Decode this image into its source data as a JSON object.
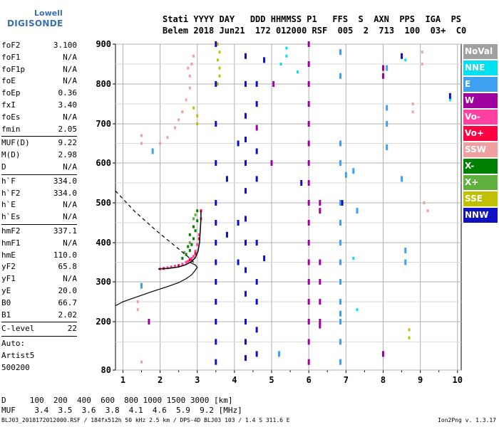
{
  "logo": {
    "top": "Lowell",
    "bottom": "DIGISONDE"
  },
  "header": {
    "line1": "Stati YYYY DAY   DDD HHMMSS P1   FFS  S  AXN  PPS  IGA  PS",
    "line2": "Belem 2018 Jun21  172 012000 RSF  005  2  713  100  03+  C0"
  },
  "params_group1": [
    {
      "label": "foF2",
      "value": "3.100"
    },
    {
      "label": "foF1",
      "value": "N/A"
    },
    {
      "label": "foF1p",
      "value": "N/A"
    },
    {
      "label": "foE",
      "value": "N/A"
    },
    {
      "label": "foEp",
      "value": "0.36"
    },
    {
      "label": "fxI",
      "value": "3.40"
    },
    {
      "label": "foEs",
      "value": "N/A"
    },
    {
      "label": "fmin",
      "value": "2.05"
    }
  ],
  "params_group2": [
    {
      "label": "MUF(D)",
      "value": "9.22"
    },
    {
      "label": "M(D)",
      "value": "2.98"
    },
    {
      "label": "D",
      "value": "N/A"
    }
  ],
  "params_group3": [
    {
      "label": "h`F",
      "value": "334.0"
    },
    {
      "label": "h`F2",
      "value": "334.0"
    },
    {
      "label": "h`E",
      "value": "N/A"
    },
    {
      "label": "h`Es",
      "value": "N/A"
    }
  ],
  "params_group4": [
    {
      "label": "hmF2",
      "value": "337.1"
    },
    {
      "label": "hmF1",
      "value": "N/A"
    },
    {
      "label": "hmE",
      "value": "110.0"
    },
    {
      "label": "yF2",
      "value": "65.8"
    },
    {
      "label": "yF1",
      "value": "N/A"
    },
    {
      "label": "yE",
      "value": "20.0"
    },
    {
      "label": "B0",
      "value": "66.7"
    },
    {
      "label": "B1",
      "value": "2.02"
    }
  ],
  "params_group5": [
    {
      "label": "C-level",
      "value": "22"
    }
  ],
  "auto": {
    "line1": "Auto:",
    "line2": "Artist5",
    "line3": "500200"
  },
  "legend": [
    {
      "label": "NoVal",
      "color": "#a0a0a0"
    },
    {
      "label": "NNE",
      "color": "#00e0f0"
    },
    {
      "label": "E",
      "color": "#40a0f0"
    },
    {
      "label": "W",
      "color": "#a000a0"
    },
    {
      "label": "Vo-",
      "color": "#ff40a0"
    },
    {
      "label": "Vo+",
      "color": "#ff0040"
    },
    {
      "label": "SSW",
      "color": "#f0a0a0"
    },
    {
      "label": "X-",
      "color": "#008000"
    },
    {
      "label": "X+",
      "color": "#60b040"
    },
    {
      "label": "SSE",
      "color": "#c0c000"
    },
    {
      "label": "NNW",
      "color": "#1010c0"
    }
  ],
  "bottom": {
    "d_line": "D     100  200  400  600  800 1000 1500 3000 [km]",
    "muf_line": "MUF    3.4  3.5  3.6  3.8  4.1  4.6  5.9  9.2 [MHz]"
  },
  "footer": {
    "left": "BLJ03_2018172012000.RSF / 184fx512h 50 kHz 2.5 km / DPS-4D BLJ03 103 / 1.4 S 311.6 E",
    "right": "Ion2Png v. 1.3.17"
  },
  "chart_data": {
    "type": "scatter",
    "title": "",
    "xlabel": "",
    "ylabel": "",
    "xlim": [
      0.8,
      10.1
    ],
    "ylim": [
      80,
      900
    ],
    "x_ticks": [
      1,
      2,
      3,
      4,
      5,
      6,
      7,
      8,
      9,
      10
    ],
    "y_ticks": [
      80,
      200,
      300,
      400,
      500,
      600,
      700,
      800,
      900
    ],
    "grid": true,
    "series": [
      {
        "name": "Vo-",
        "color": "#ff40a0",
        "points": [
          [
            2.0,
            333
          ],
          [
            2.2,
            336
          ],
          [
            2.4,
            340
          ],
          [
            2.6,
            345
          ],
          [
            2.7,
            350
          ],
          [
            2.8,
            357
          ],
          [
            2.9,
            365
          ],
          [
            2.95,
            378
          ],
          [
            3.0,
            395
          ],
          [
            3.05,
            420
          ],
          [
            3.1,
            460
          ],
          [
            2.3,
            338
          ],
          [
            2.5,
            342
          ],
          [
            2.75,
            352
          ],
          [
            2.85,
            360
          ]
        ]
      },
      {
        "name": "Vo+",
        "color": "#ff0040",
        "points": [
          [
            2.1,
            334
          ],
          [
            2.5,
            341
          ],
          [
            2.8,
            356
          ],
          [
            2.95,
            372
          ],
          [
            3.05,
            410
          ],
          [
            3.1,
            480
          ]
        ]
      },
      {
        "name": "X-",
        "color": "#008000",
        "points": [
          [
            2.6,
            360
          ],
          [
            2.7,
            370
          ],
          [
            2.8,
            380
          ],
          [
            2.85,
            395
          ],
          [
            2.9,
            410
          ],
          [
            2.95,
            430
          ],
          [
            3.0,
            455
          ],
          [
            3.0,
            480
          ],
          [
            2.75,
            390
          ],
          [
            2.8,
            420
          ],
          [
            2.9,
            440
          ]
        ]
      },
      {
        "name": "X+",
        "color": "#60b040",
        "points": [
          [
            2.65,
            375
          ],
          [
            2.8,
            400
          ],
          [
            2.9,
            460
          ],
          [
            2.95,
            470
          ]
        ]
      },
      {
        "name": "SSW",
        "color": "#f0a0a0",
        "points": [
          [
            2.0,
            650
          ],
          [
            2.2,
            665
          ],
          [
            2.4,
            690
          ],
          [
            2.5,
            710
          ],
          [
            2.6,
            730
          ],
          [
            2.7,
            760
          ],
          [
            2.8,
            790
          ],
          [
            2.8,
            820
          ],
          [
            2.85,
            850
          ],
          [
            2.9,
            870
          ],
          [
            1.5,
            650
          ],
          [
            1.5,
            670
          ],
          [
            2.75,
            840
          ],
          [
            9.05,
            850
          ],
          [
            9.05,
            880
          ],
          [
            8.8,
            750
          ],
          [
            8.8,
            730
          ],
          [
            9.1,
            500
          ],
          [
            9.2,
            480
          ],
          [
            1.4,
            250
          ],
          [
            1.4,
            230
          ],
          [
            1.5,
            100
          ]
        ]
      },
      {
        "name": "SSE",
        "color": "#c0c000",
        "points": [
          [
            3.55,
            900
          ],
          [
            3.6,
            880
          ],
          [
            3.55,
            860
          ],
          [
            3.6,
            840
          ],
          [
            3.6,
            820
          ],
          [
            3.55,
            800
          ],
          [
            3.0,
            720
          ],
          [
            3.0,
            700
          ],
          [
            2.9,
            740
          ],
          [
            8.7,
            180
          ],
          [
            8.7,
            160
          ]
        ]
      },
      {
        "name": "W",
        "color": "#a000a0",
        "points": [
          [
            6.0,
            900
          ],
          [
            6.0,
            850
          ],
          [
            6.0,
            800
          ],
          [
            6.0,
            750
          ],
          [
            6.0,
            700
          ],
          [
            6.0,
            650
          ],
          [
            6.0,
            600
          ],
          [
            6.0,
            550
          ],
          [
            6.0,
            500
          ],
          [
            6.0,
            450
          ],
          [
            6.0,
            400
          ],
          [
            6.0,
            350
          ],
          [
            6.0,
            300
          ],
          [
            6.0,
            250
          ],
          [
            6.0,
            200
          ],
          [
            6.0,
            150
          ],
          [
            6.0,
            100
          ],
          [
            6.3,
            500
          ],
          [
            6.3,
            480
          ],
          [
            6.3,
            350
          ],
          [
            6.3,
            300
          ],
          [
            6.3,
            250
          ],
          [
            6.3,
            200
          ],
          [
            6.3,
            190
          ],
          [
            5.05,
            800
          ],
          [
            5.0,
            600
          ],
          [
            4.6,
            690
          ],
          [
            8.0,
            840
          ],
          [
            8.0,
            820
          ],
          [
            8.0,
            120
          ],
          [
            1.7,
            200
          ]
        ]
      },
      {
        "name": "E",
        "color": "#40a0f0",
        "points": [
          [
            6.85,
            880
          ],
          [
            6.85,
            820
          ],
          [
            6.85,
            650
          ],
          [
            6.85,
            600
          ],
          [
            6.85,
            500
          ],
          [
            6.85,
            450
          ],
          [
            6.85,
            400
          ],
          [
            6.85,
            350
          ],
          [
            6.85,
            300
          ],
          [
            6.85,
            250
          ],
          [
            6.85,
            220
          ],
          [
            6.85,
            200
          ],
          [
            6.85,
            150
          ],
          [
            6.85,
            100
          ],
          [
            8.1,
            840
          ],
          [
            8.1,
            740
          ],
          [
            8.1,
            700
          ],
          [
            8.1,
            640
          ],
          [
            8.5,
            560
          ],
          [
            8.6,
            380
          ],
          [
            8.6,
            350
          ],
          [
            5.2,
            120
          ],
          [
            7.0,
            570
          ],
          [
            7.2,
            580
          ],
          [
            7.3,
            480
          ],
          [
            1.8,
            630
          ],
          [
            1.5,
            290
          ]
        ]
      },
      {
        "name": "NNE",
        "color": "#00e0f0",
        "points": [
          [
            5.25,
            850
          ],
          [
            5.4,
            870
          ],
          [
            5.7,
            830
          ],
          [
            5.4,
            890
          ],
          [
            9.8,
            760
          ],
          [
            7.2,
            360
          ],
          [
            7.3,
            230
          ],
          [
            8.6,
            860
          ]
        ]
      },
      {
        "name": "NNW",
        "color": "#1010c0",
        "points": [
          [
            3.5,
            900
          ],
          [
            3.5,
            800
          ],
          [
            3.5,
            700
          ],
          [
            3.5,
            600
          ],
          [
            3.5,
            500
          ],
          [
            3.5,
            450
          ],
          [
            3.5,
            400
          ],
          [
            3.5,
            350
          ],
          [
            3.5,
            300
          ],
          [
            3.5,
            250
          ],
          [
            3.5,
            200
          ],
          [
            3.5,
            150
          ],
          [
            3.5,
            100
          ],
          [
            4.3,
            870
          ],
          [
            4.3,
            800
          ],
          [
            4.3,
            720
          ],
          [
            4.3,
            660
          ],
          [
            4.3,
            600
          ],
          [
            4.3,
            530
          ],
          [
            4.3,
            460
          ],
          [
            4.3,
            400
          ],
          [
            4.3,
            330
          ],
          [
            4.3,
            270
          ],
          [
            4.3,
            200
          ],
          [
            4.3,
            150
          ],
          [
            4.3,
            110
          ],
          [
            4.6,
            800
          ],
          [
            4.6,
            750
          ],
          [
            4.6,
            630
          ],
          [
            4.6,
            560
          ],
          [
            4.6,
            400
          ],
          [
            4.6,
            300
          ],
          [
            4.6,
            250
          ],
          [
            4.6,
            180
          ],
          [
            4.6,
            120
          ],
          [
            4.1,
            650
          ],
          [
            4.1,
            450
          ],
          [
            4.1,
            350
          ],
          [
            3.8,
            420
          ],
          [
            3.8,
            560
          ],
          [
            4.8,
            860
          ],
          [
            4.8,
            360
          ],
          [
            5.8,
            550
          ],
          [
            9.8,
            770
          ],
          [
            8.5,
            870
          ],
          [
            6.9,
            500
          ]
        ]
      }
    ],
    "f2_trace": [
      [
        1.95,
        333
      ],
      [
        2.2,
        334
      ],
      [
        2.5,
        338
      ],
      [
        2.7,
        344
      ],
      [
        2.85,
        352
      ],
      [
        2.95,
        362
      ],
      [
        3.02,
        378
      ],
      [
        3.06,
        400
      ],
      [
        3.08,
        430
      ],
      [
        3.1,
        460
      ],
      [
        3.1,
        480
      ]
    ],
    "profile_solid": [
      [
        0.8,
        240
      ],
      [
        1.0,
        250
      ],
      [
        1.4,
        263
      ],
      [
        1.8,
        276
      ],
      [
        2.2,
        288
      ],
      [
        2.5,
        298
      ],
      [
        2.7,
        308
      ],
      [
        2.85,
        318
      ],
      [
        2.95,
        330
      ],
      [
        3.0,
        337
      ],
      [
        2.95,
        343
      ],
      [
        2.8,
        350
      ]
    ],
    "profile_dashed": [
      [
        0.8,
        530
      ],
      [
        1.0,
        510
      ],
      [
        1.3,
        480
      ],
      [
        1.6,
        455
      ],
      [
        1.9,
        430
      ],
      [
        2.2,
        407
      ],
      [
        2.45,
        388
      ],
      [
        2.65,
        372
      ],
      [
        2.8,
        360
      ],
      [
        2.9,
        350
      ],
      [
        2.95,
        343
      ]
    ]
  }
}
